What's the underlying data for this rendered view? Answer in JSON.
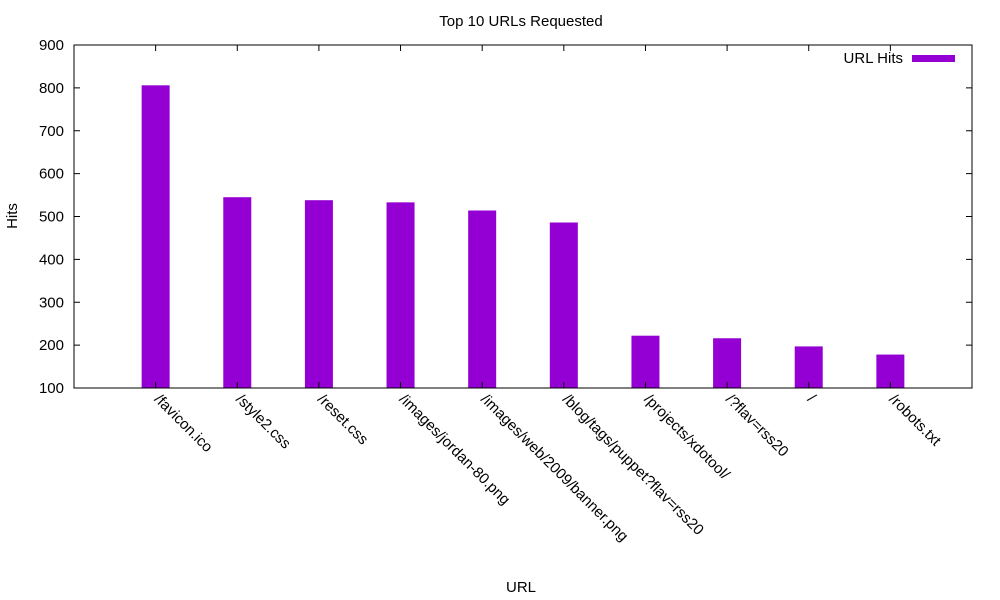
{
  "chart_data": {
    "type": "bar",
    "title": "Top 10 URLs Requested",
    "xlabel": "URL",
    "ylabel": "Hits",
    "ylim": [
      100,
      900
    ],
    "yticks": [
      100,
      200,
      300,
      400,
      500,
      600,
      700,
      800,
      900
    ],
    "legend_position": "top-right",
    "grid": false,
    "series": [
      {
        "name": "URL Hits",
        "color": "#9400d3",
        "values": [
          806,
          545,
          538,
          533,
          514,
          486,
          222,
          216,
          197,
          178
        ]
      }
    ],
    "categories": [
      "/favicon.ico",
      "/style2.css",
      "/reset.css",
      "/images/jordan-80.png",
      "/images/web/2009/banner.png",
      "/blog/tags/puppet?flav=rss20",
      "/projects/xdotool/",
      "/?flav=rss20",
      "/",
      "/robots.txt"
    ]
  }
}
